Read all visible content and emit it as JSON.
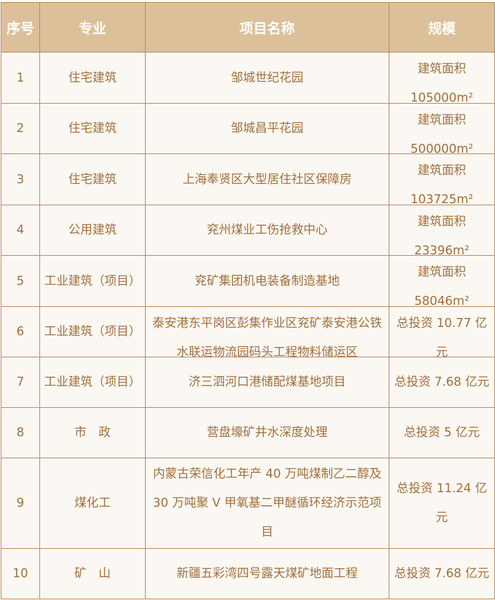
{
  "colors": {
    "header_bg": "#dcc09a",
    "body_bg": "#fbf8f3",
    "text": "#a0703e",
    "border": "#b88a5c"
  },
  "headers": [
    "序号",
    "专业",
    "项目名称",
    "规模"
  ],
  "rows": [
    {
      "no": "1",
      "type": "住宅建筑",
      "name": "邹城世纪花园",
      "scale": "建筑面积 105000m²"
    },
    {
      "no": "2",
      "type": "住宅建筑",
      "name": "邹城昌平花园",
      "scale": "建筑面积 500000m²"
    },
    {
      "no": "3",
      "type": "住宅建筑",
      "name": "上海奉贤区大型居住社区保障房",
      "scale": "建筑面积 103725m²"
    },
    {
      "no": "4",
      "type": "公用建筑",
      "name": "兖州煤业工伤抢救中心",
      "scale": "建筑面积 23396m²"
    },
    {
      "no": "5",
      "type": "工业建筑（项目）",
      "name": "兖矿集团机电装备制造基地",
      "scale": "建筑面积 58046m²"
    },
    {
      "no": "6",
      "type": "工业建筑（项目）",
      "name": "泰安港东平岗区彭集作业区兖矿泰安港公铁水联运物流园码头工程物料储运区",
      "scale": "总投资 10.77 亿元"
    },
    {
      "no": "7",
      "type": "工业建筑（项目）",
      "name": "济三泗河口港储配煤基地项目",
      "scale": "总投资 7.68 亿元"
    },
    {
      "no": "8",
      "type": "市　政",
      "name": "营盘壕矿井水深度处理",
      "scale": "总投资 5 亿元"
    },
    {
      "no": "9",
      "type": "煤化工",
      "name": "内蒙古荣信化工年产 40 万吨煤制乙二醇及 30 万吨聚 V 甲氧基二甲醚循环经济示范项目",
      "scale": "总投资 11.24 亿元"
    },
    {
      "no": "10",
      "type": "矿　山",
      "name": "新疆五彩湾四号露天煤矿地面工程",
      "scale": "总投资 7.68 亿元"
    }
  ]
}
